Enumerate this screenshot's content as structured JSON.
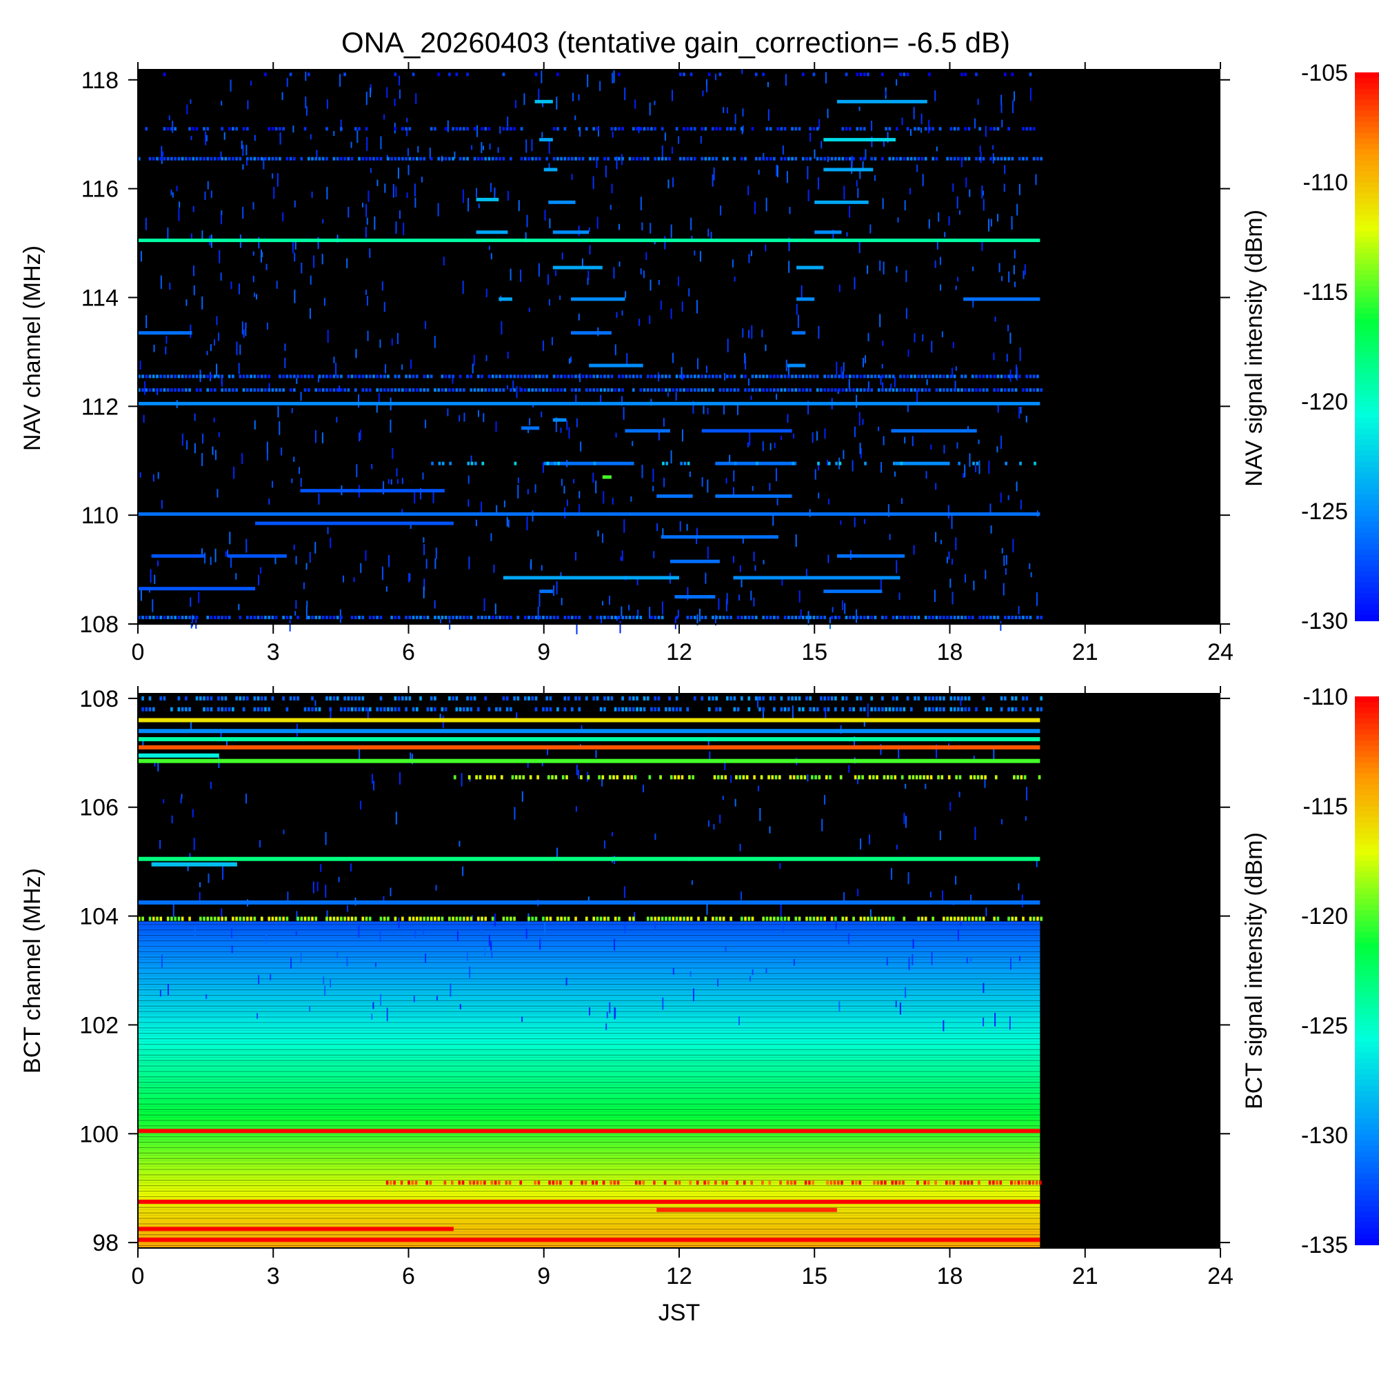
{
  "title": "ONA_20260403 (tentative gain_correction= -6.5 dB)",
  "chart_data": [
    {
      "type": "heatmap",
      "panel": "nav",
      "ylabel": "NAV channel (MHz)",
      "xlabel": "",
      "xlim": [
        0,
        24
      ],
      "ylim": [
        108,
        118.2
      ],
      "xticks": [
        0,
        3,
        6,
        9,
        12,
        15,
        18,
        21,
        24
      ],
      "yticks": [
        108,
        110,
        112,
        114,
        116,
        118
      ],
      "data_end_hour": 20,
      "colorbar": {
        "label": "NAV signal intensity (dBm)",
        "range": [
          -130,
          -105
        ],
        "ticks": [
          -105,
          -110,
          -115,
          -120,
          -125,
          -130
        ]
      },
      "bands": [
        {
          "freq": 118.1,
          "start": 0,
          "end": 20,
          "level": -129,
          "density": 0.15
        },
        {
          "freq": 117.6,
          "start": 8.8,
          "end": 9.2,
          "level": -123
        },
        {
          "freq": 117.6,
          "start": 15.5,
          "end": 17.5,
          "level": -124
        },
        {
          "freq": 117.1,
          "start": 0,
          "end": 20,
          "level": -128,
          "density": 0.5
        },
        {
          "freq": 116.9,
          "start": 15.2,
          "end": 16.8,
          "level": -122
        },
        {
          "freq": 116.9,
          "start": 8.9,
          "end": 9.2,
          "level": -124
        },
        {
          "freq": 116.55,
          "start": 0,
          "end": 20,
          "level": -127,
          "density": 0.8
        },
        {
          "freq": 116.35,
          "start": 9.0,
          "end": 9.3,
          "level": -124
        },
        {
          "freq": 116.35,
          "start": 15.2,
          "end": 16.3,
          "level": -124
        },
        {
          "freq": 115.8,
          "start": 7.5,
          "end": 8.0,
          "level": -123
        },
        {
          "freq": 115.75,
          "start": 9.1,
          "end": 9.7,
          "level": -125
        },
        {
          "freq": 115.75,
          "start": 15.0,
          "end": 16.2,
          "level": -124
        },
        {
          "freq": 115.2,
          "start": 7.5,
          "end": 8.2,
          "level": -124
        },
        {
          "freq": 115.2,
          "start": 9.2,
          "end": 10.0,
          "level": -125
        },
        {
          "freq": 115.2,
          "start": 15.0,
          "end": 15.6,
          "level": -125
        },
        {
          "freq": 115.05,
          "start": 0,
          "end": 20,
          "level": -119
        },
        {
          "freq": 114.55,
          "start": 9.2,
          "end": 10.3,
          "level": -124
        },
        {
          "freq": 114.55,
          "start": 14.6,
          "end": 15.2,
          "level": -124
        },
        {
          "freq": 113.97,
          "start": 8.0,
          "end": 8.3,
          "level": -124
        },
        {
          "freq": 113.97,
          "start": 9.6,
          "end": 10.8,
          "level": -125
        },
        {
          "freq": 113.97,
          "start": 14.6,
          "end": 15.0,
          "level": -125
        },
        {
          "freq": 113.97,
          "start": 18.3,
          "end": 20,
          "level": -126
        },
        {
          "freq": 113.35,
          "start": 0,
          "end": 1.2,
          "level": -126
        },
        {
          "freq": 113.35,
          "start": 9.6,
          "end": 10.5,
          "level": -126
        },
        {
          "freq": 113.35,
          "start": 14.5,
          "end": 14.8,
          "level": -126
        },
        {
          "freq": 112.75,
          "start": 10.0,
          "end": 11.2,
          "level": -125
        },
        {
          "freq": 112.75,
          "start": 14.4,
          "end": 14.8,
          "level": -125
        },
        {
          "freq": 112.55,
          "start": 0,
          "end": 20,
          "level": -127,
          "density": 0.9
        },
        {
          "freq": 112.3,
          "start": 0,
          "end": 20,
          "level": -127,
          "density": 0.9
        },
        {
          "freq": 112.05,
          "start": 0,
          "end": 20,
          "level": -125
        },
        {
          "freq": 111.75,
          "start": 9.2,
          "end": 9.5,
          "level": -125
        },
        {
          "freq": 111.6,
          "start": 8.5,
          "end": 8.9,
          "level": -126
        },
        {
          "freq": 111.55,
          "start": 10.8,
          "end": 11.8,
          "level": -126
        },
        {
          "freq": 111.55,
          "start": 12.5,
          "end": 14.5,
          "level": -127
        },
        {
          "freq": 111.55,
          "start": 16.7,
          "end": 18.6,
          "level": -126
        },
        {
          "freq": 110.95,
          "start": 9.0,
          "end": 11.0,
          "level": -126
        },
        {
          "freq": 110.95,
          "start": 12.8,
          "end": 14.6,
          "level": -126
        },
        {
          "freq": 110.95,
          "start": 16.8,
          "end": 18.0,
          "level": -125
        },
        {
          "freq": 110.95,
          "start": 6.5,
          "end": 20,
          "level": -124,
          "density": 0.25
        },
        {
          "freq": 110.7,
          "start": 10.3,
          "end": 10.5,
          "level": -115
        },
        {
          "freq": 110.45,
          "start": 3.6,
          "end": 6.8,
          "level": -127
        },
        {
          "freq": 110.35,
          "start": 11.5,
          "end": 12.3,
          "level": -126
        },
        {
          "freq": 110.35,
          "start": 12.8,
          "end": 14.5,
          "level": -126
        },
        {
          "freq": 110.02,
          "start": 0,
          "end": 20,
          "level": -126
        },
        {
          "freq": 109.85,
          "start": 2.6,
          "end": 7.0,
          "level": -127
        },
        {
          "freq": 109.6,
          "start": 11.6,
          "end": 14.2,
          "level": -126
        },
        {
          "freq": 109.25,
          "start": 0.3,
          "end": 1.5,
          "level": -127
        },
        {
          "freq": 109.25,
          "start": 2.0,
          "end": 3.3,
          "level": -127
        },
        {
          "freq": 109.25,
          "start": 15.5,
          "end": 17.0,
          "level": -126
        },
        {
          "freq": 109.15,
          "start": 11.8,
          "end": 12.9,
          "level": -126
        },
        {
          "freq": 108.85,
          "start": 8.1,
          "end": 12.0,
          "level": -124
        },
        {
          "freq": 108.85,
          "start": 13.2,
          "end": 16.9,
          "level": -125
        },
        {
          "freq": 108.65,
          "start": 0,
          "end": 2.6,
          "level": -127
        },
        {
          "freq": 108.6,
          "start": 15.2,
          "end": 16.5,
          "level": -126
        },
        {
          "freq": 108.6,
          "start": 8.9,
          "end": 9.2,
          "level": -126
        },
        {
          "freq": 108.5,
          "start": 11.9,
          "end": 12.8,
          "level": -126
        },
        {
          "freq": 108.12,
          "start": 0,
          "end": 20,
          "level": -127,
          "density": 0.8
        }
      ]
    },
    {
      "type": "heatmap",
      "panel": "bct",
      "ylabel": "BCT channel (MHz)",
      "xlabel": "JST",
      "xlim": [
        0,
        24
      ],
      "ylim": [
        97.9,
        108.1
      ],
      "xticks": [
        0,
        3,
        6,
        9,
        12,
        15,
        18,
        21,
        24
      ],
      "yticks": [
        98,
        100,
        102,
        104,
        106,
        108
      ],
      "data_end_hour": 20,
      "colorbar": {
        "label": "BCT signal intensity (dBm)",
        "range": [
          -135,
          -110
        ],
        "ticks": [
          -110,
          -115,
          -120,
          -125,
          -130,
          -135
        ]
      },
      "gradient": {
        "from_freq": 97.9,
        "to_freq": 103.9,
        "level_from": -114,
        "level_to": -132
      },
      "bands": [
        {
          "freq": 108.0,
          "start": 0,
          "end": 20,
          "level": -131,
          "density": 0.6
        },
        {
          "freq": 107.8,
          "start": 0,
          "end": 20,
          "level": -131,
          "density": 0.6
        },
        {
          "freq": 107.6,
          "start": 0,
          "end": 20,
          "level": -116
        },
        {
          "freq": 107.4,
          "start": 0,
          "end": 20,
          "level": -130
        },
        {
          "freq": 107.25,
          "start": 0,
          "end": 20,
          "level": -124
        },
        {
          "freq": 107.1,
          "start": 0,
          "end": 20,
          "level": -112
        },
        {
          "freq": 106.95,
          "start": 0,
          "end": 1.8,
          "level": -126
        },
        {
          "freq": 106.85,
          "start": 0,
          "end": 20,
          "level": -120
        },
        {
          "freq": 106.55,
          "start": 7.0,
          "end": 20,
          "level": -118,
          "density": 0.6
        },
        {
          "freq": 105.05,
          "start": 0,
          "end": 20,
          "level": -123
        },
        {
          "freq": 104.95,
          "start": 0.3,
          "end": 2.2,
          "level": -128
        },
        {
          "freq": 104.25,
          "start": 0,
          "end": 20,
          "level": -131
        },
        {
          "freq": 103.95,
          "start": 0,
          "end": 20,
          "level": -118,
          "density": 0.7
        },
        {
          "freq": 100.05,
          "start": 0,
          "end": 20,
          "level": -110
        },
        {
          "freq": 99.1,
          "start": 5.5,
          "end": 20,
          "level": -111,
          "density": 0.6
        },
        {
          "freq": 98.75,
          "start": 0,
          "end": 20,
          "level": -110
        },
        {
          "freq": 98.6,
          "start": 11.5,
          "end": 15.5,
          "level": -111
        },
        {
          "freq": 98.25,
          "start": 0,
          "end": 7.0,
          "level": -110
        },
        {
          "freq": 98.05,
          "start": 0,
          "end": 20,
          "level": -110
        }
      ]
    }
  ]
}
